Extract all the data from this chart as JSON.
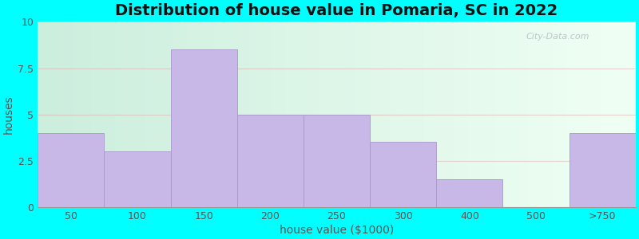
{
  "title": "Distribution of house value in Pomaria, SC in 2022",
  "xlabel": "house value ($1000)",
  "ylabel": "houses",
  "categories": [
    "50",
    "100",
    "150",
    "200",
    "250",
    "300",
    "400",
    "500",
    ">750"
  ],
  "values": [
    4.0,
    3.0,
    8.5,
    5.0,
    5.0,
    3.5,
    1.5,
    0.0,
    4.0
  ],
  "bar_color": "#C8B8E8",
  "bar_edgecolor": "#A898C8",
  "ylim": [
    0,
    10
  ],
  "yticks": [
    0,
    2.5,
    5,
    7.5,
    10
  ],
  "ytick_labels": [
    "0",
    "2.5",
    "5",
    "7.5",
    "10"
  ],
  "background_outer": "#00FFFF",
  "plot_bg_left_color": "#cceedd",
  "plot_bg_right_color": "#f0fff4",
  "title_fontsize": 14,
  "axis_label_fontsize": 10,
  "tick_fontsize": 9,
  "watermark": "City-Data.com",
  "grid_color": "#ddaaaa",
  "grid_alpha": 0.5,
  "grid_linewidth": 0.8
}
